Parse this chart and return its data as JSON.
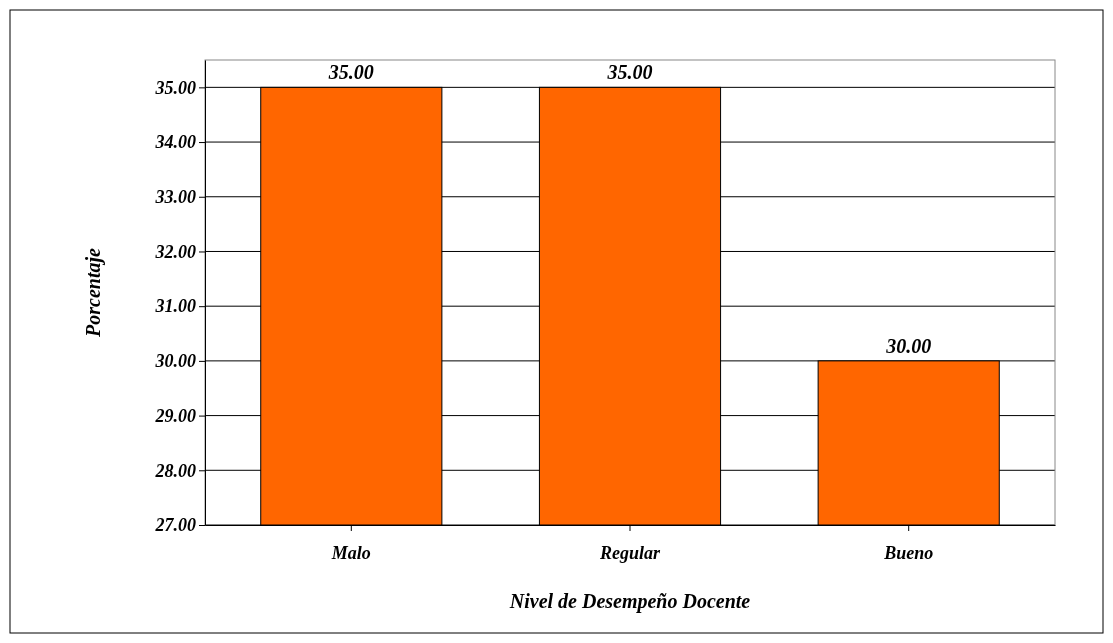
{
  "chart_data": {
    "type": "bar",
    "xlabel": "Nivel de Desempeño Docente",
    "ylabel": "Porcentaje",
    "categories": [
      "Malo",
      "Regular",
      "Bueno"
    ],
    "values": [
      35.0,
      35.0,
      30.0
    ],
    "value_labels": [
      "35.00",
      "35.00",
      "30.00"
    ],
    "color": "#ff6600",
    "ylim": [
      27,
      35.5
    ],
    "yticks": [
      {
        "value": 27,
        "label": "27.00"
      },
      {
        "value": 28,
        "label": "28.00"
      },
      {
        "value": 29,
        "label": "29.00"
      },
      {
        "value": 30,
        "label": "30.00"
      },
      {
        "value": 31,
        "label": "31.00"
      },
      {
        "value": 32,
        "label": "32.00"
      },
      {
        "value": 33,
        "label": "33.00"
      },
      {
        "value": 34,
        "label": "34.00"
      },
      {
        "value": 35,
        "label": "35.00"
      }
    ],
    "grid": "y"
  }
}
